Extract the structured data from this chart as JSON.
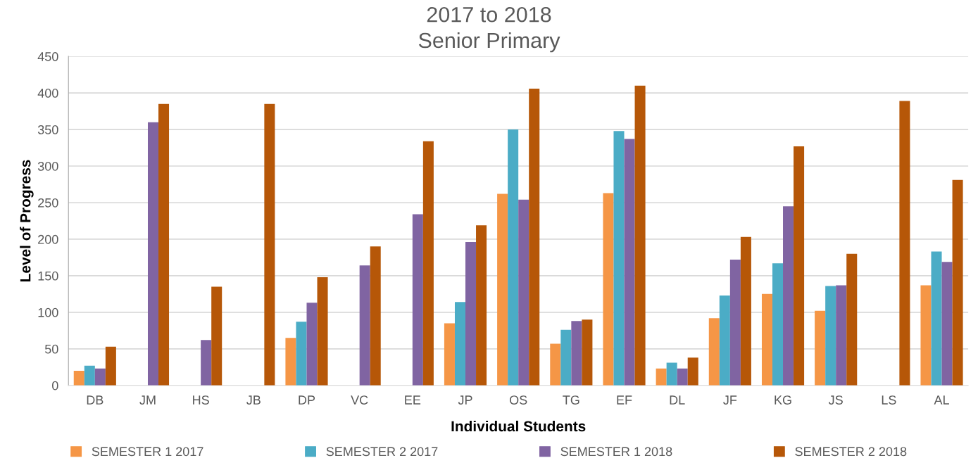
{
  "chart_data": {
    "type": "bar",
    "title": "2017 to 2018",
    "subtitle": "Senior Primary",
    "xlabel": "Individual Students",
    "ylabel": "Level of Progress",
    "categories": [
      "DB",
      "JM",
      "HS",
      "JB",
      "DP",
      "VC",
      "EE",
      "JP",
      "OS",
      "TG",
      "EF",
      "DL",
      "JF",
      "KG",
      "JS",
      "LS",
      "AL"
    ],
    "series": [
      {
        "name": "SEMESTER 1 2017",
        "color": "#f59646",
        "values": [
          20,
          null,
          null,
          null,
          65,
          null,
          null,
          85,
          262,
          57,
          263,
          23,
          92,
          125,
          102,
          null,
          137
        ]
      },
      {
        "name": "SEMESTER 2 2017",
        "color": "#4bacc6",
        "values": [
          27,
          null,
          null,
          null,
          87,
          null,
          null,
          114,
          350,
          76,
          348,
          31,
          123,
          167,
          136,
          null,
          183
        ]
      },
      {
        "name": "SEMESTER 1 2018",
        "color": "#8064a2",
        "values": [
          23,
          360,
          62,
          null,
          113,
          164,
          234,
          196,
          254,
          88,
          337,
          23,
          172,
          245,
          137,
          null,
          169
        ]
      },
      {
        "name": "SEMESTER 2 2018",
        "color": "#b65708",
        "values": [
          53,
          385,
          135,
          385,
          148,
          190,
          334,
          219,
          406,
          90,
          410,
          38,
          203,
          327,
          180,
          389,
          281
        ]
      }
    ],
    "ylim": [
      0,
      450
    ],
    "yticks": [
      0,
      50,
      100,
      150,
      200,
      250,
      300,
      350,
      400,
      450
    ],
    "grid": "y",
    "legend": "bottom"
  }
}
